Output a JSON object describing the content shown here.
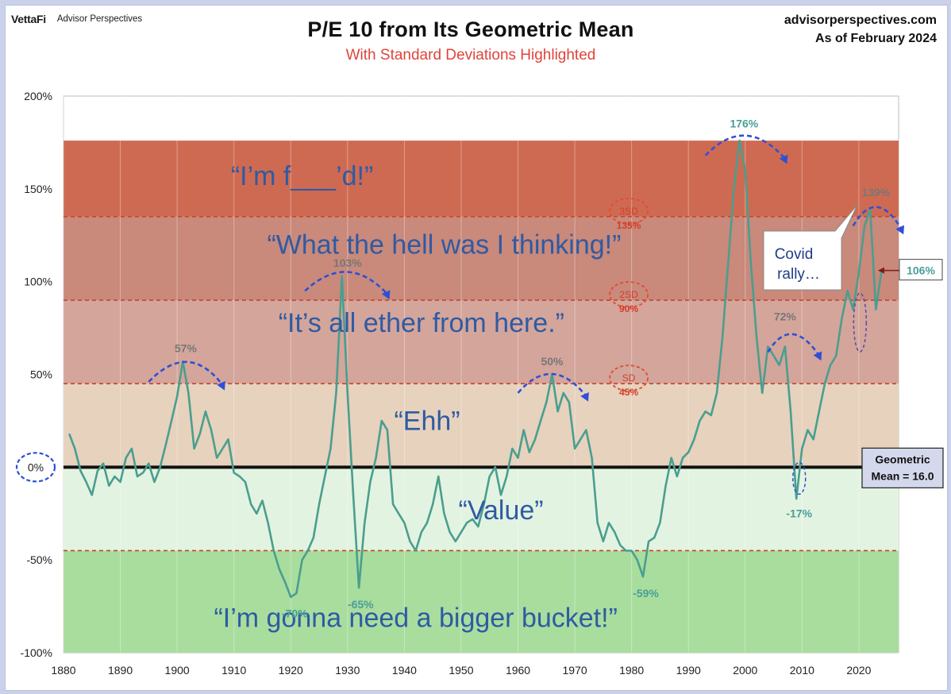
{
  "brand": {
    "logo": "VettaFi",
    "name": "Advisor Perspectives"
  },
  "site": {
    "url": "advisorperspectives.com",
    "asof": "As of February 2024"
  },
  "chart_data": {
    "type": "line",
    "title": "P/E 10 from Its Geometric Mean",
    "subtitle": "With Standard Deviations Highlighted",
    "xlim": [
      1880,
      2027
    ],
    "ylim": [
      -100,
      200
    ],
    "x_ticks": [
      "1880",
      "1890",
      "1900",
      "1910",
      "1920",
      "1930",
      "1940",
      "1950",
      "1960",
      "1970",
      "1980",
      "1990",
      "2000",
      "2010",
      "2020"
    ],
    "y_ticks": [
      "200%",
      "150%",
      "100%",
      "50%",
      "0%",
      "-50%",
      "-100%"
    ],
    "y_tick_values": [
      200,
      150,
      100,
      50,
      0,
      -50,
      -100
    ],
    "bands": [
      {
        "from": 135,
        "to": 176,
        "color": "#cf6a52"
      },
      {
        "from": 90,
        "to": 135,
        "color": "#c9897b"
      },
      {
        "from": 45,
        "to": 90,
        "color": "#d4a59a"
      },
      {
        "from": 0,
        "to": 45,
        "color": "#e6d2bd"
      },
      {
        "from": -45,
        "to": 0,
        "color": "#e3f3e1"
      },
      {
        "from": -100,
        "to": -45,
        "color": "#a8dd9e"
      }
    ],
    "sd_lines": [
      135,
      90,
      45,
      -45
    ],
    "sd_labels": [
      {
        "name": "3SD",
        "value": "135%"
      },
      {
        "name": "2SD",
        "value": "90%"
      },
      {
        "name": "SD",
        "value": "45%"
      }
    ],
    "zone_texts": [
      {
        "text": "“I’m f___’d!”",
        "x": 1922,
        "y": 152
      },
      {
        "text": "“What the hell was I thinking!”",
        "x": 1947,
        "y": 115
      },
      {
        "text": "“It’s all ether from here.”",
        "x": 1943,
        "y": 73
      },
      {
        "text": "“Ehh”",
        "x": 1944,
        "y": 20
      },
      {
        "text": "“Value”",
        "x": 1957,
        "y": -28
      },
      {
        "text": "“I’m gonna need a bigger bucket!”",
        "x": 1942,
        "y": -86
      }
    ],
    "peak_labels": [
      {
        "text": "57%",
        "x": 1901.5,
        "y": 62,
        "color": "#777777"
      },
      {
        "text": "103%",
        "x": 1930,
        "y": 108,
        "color": "#777777"
      },
      {
        "text": "50%",
        "x": 1966,
        "y": 55,
        "color": "#777777"
      },
      {
        "text": "176%",
        "x": 1999.8,
        "y": 183,
        "color": "#4a9e96"
      },
      {
        "text": "72%",
        "x": 2007,
        "y": 79,
        "color": "#777777"
      },
      {
        "text": "139%",
        "x": 2023,
        "y": 146,
        "color": "#777777"
      },
      {
        "text": "-17%",
        "x": 2009.5,
        "y": -27,
        "color": "#4a9e96"
      },
      {
        "text": "-70%",
        "x": 1920.7,
        "y": -81,
        "color": "#4a9e96"
      },
      {
        "text": "-65%",
        "x": 1932.3,
        "y": -76,
        "color": "#4a9e96"
      },
      {
        "text": "-59%",
        "x": 1982.5,
        "y": -70,
        "color": "#4a9e96"
      }
    ],
    "annotations": {
      "zero_label": "0%",
      "covid_line1": "Covid",
      "covid_line2": "rally…",
      "latest": "106%",
      "mean_line1": "Geometric",
      "mean_line2": "Mean = 16.0"
    },
    "series": [
      {
        "points": [
          [
            1881,
            18
          ],
          [
            1882,
            10
          ],
          [
            1883,
            -2
          ],
          [
            1884,
            -8
          ],
          [
            1885,
            -15
          ],
          [
            1886,
            -2
          ],
          [
            1887,
            2
          ],
          [
            1888,
            -10
          ],
          [
            1889,
            -5
          ],
          [
            1890,
            -8
          ],
          [
            1891,
            5
          ],
          [
            1892,
            10
          ],
          [
            1893,
            -5
          ],
          [
            1894,
            -3
          ],
          [
            1895,
            2
          ],
          [
            1896,
            -8
          ],
          [
            1897,
            0
          ],
          [
            1898,
            12
          ],
          [
            1899,
            25
          ],
          [
            1900,
            38
          ],
          [
            1901,
            57
          ],
          [
            1902,
            40
          ],
          [
            1903,
            10
          ],
          [
            1904,
            18
          ],
          [
            1905,
            30
          ],
          [
            1906,
            20
          ],
          [
            1907,
            5
          ],
          [
            1908,
            10
          ],
          [
            1909,
            15
          ],
          [
            1910,
            -3
          ],
          [
            1911,
            -5
          ],
          [
            1912,
            -8
          ],
          [
            1913,
            -20
          ],
          [
            1914,
            -25
          ],
          [
            1915,
            -18
          ],
          [
            1916,
            -30
          ],
          [
            1917,
            -45
          ],
          [
            1918,
            -55
          ],
          [
            1919,
            -62
          ],
          [
            1920,
            -70
          ],
          [
            1921,
            -68
          ],
          [
            1922,
            -50
          ],
          [
            1923,
            -45
          ],
          [
            1924,
            -38
          ],
          [
            1925,
            -20
          ],
          [
            1926,
            -5
          ],
          [
            1927,
            10
          ],
          [
            1928,
            40
          ],
          [
            1929,
            103
          ],
          [
            1930,
            40
          ],
          [
            1931,
            -15
          ],
          [
            1932,
            -65
          ],
          [
            1933,
            -30
          ],
          [
            1934,
            -8
          ],
          [
            1935,
            5
          ],
          [
            1936,
            25
          ],
          [
            1937,
            20
          ],
          [
            1938,
            -20
          ],
          [
            1939,
            -25
          ],
          [
            1940,
            -30
          ],
          [
            1941,
            -40
          ],
          [
            1942,
            -45
          ],
          [
            1943,
            -35
          ],
          [
            1944,
            -30
          ],
          [
            1945,
            -20
          ],
          [
            1946,
            -5
          ],
          [
            1947,
            -25
          ],
          [
            1948,
            -35
          ],
          [
            1949,
            -40
          ],
          [
            1950,
            -35
          ],
          [
            1951,
            -30
          ],
          [
            1952,
            -28
          ],
          [
            1953,
            -32
          ],
          [
            1954,
            -20
          ],
          [
            1955,
            -5
          ],
          [
            1956,
            0
          ],
          [
            1957,
            -15
          ],
          [
            1958,
            -5
          ],
          [
            1959,
            10
          ],
          [
            1960,
            5
          ],
          [
            1961,
            20
          ],
          [
            1962,
            8
          ],
          [
            1963,
            15
          ],
          [
            1964,
            25
          ],
          [
            1965,
            35
          ],
          [
            1966,
            50
          ],
          [
            1967,
            30
          ],
          [
            1968,
            40
          ],
          [
            1969,
            35
          ],
          [
            1970,
            10
          ],
          [
            1971,
            15
          ],
          [
            1972,
            20
          ],
          [
            1973,
            5
          ],
          [
            1974,
            -30
          ],
          [
            1975,
            -40
          ],
          [
            1976,
            -30
          ],
          [
            1977,
            -35
          ],
          [
            1978,
            -42
          ],
          [
            1979,
            -45
          ],
          [
            1980,
            -45
          ],
          [
            1981,
            -50
          ],
          [
            1982,
            -59
          ],
          [
            1983,
            -40
          ],
          [
            1984,
            -38
          ],
          [
            1985,
            -30
          ],
          [
            1986,
            -10
          ],
          [
            1987,
            5
          ],
          [
            1988,
            -5
          ],
          [
            1989,
            5
          ],
          [
            1990,
            8
          ],
          [
            1991,
            15
          ],
          [
            1992,
            25
          ],
          [
            1993,
            30
          ],
          [
            1994,
            28
          ],
          [
            1995,
            40
          ],
          [
            1996,
            70
          ],
          [
            1997,
            110
          ],
          [
            1998,
            150
          ],
          [
            1999,
            176
          ],
          [
            2000,
            160
          ],
          [
            2001,
            110
          ],
          [
            2002,
            70
          ],
          [
            2003,
            40
          ],
          [
            2004,
            65
          ],
          [
            2005,
            60
          ],
          [
            2006,
            55
          ],
          [
            2007,
            65
          ],
          [
            2008,
            30
          ],
          [
            2009,
            -17
          ],
          [
            2010,
            10
          ],
          [
            2011,
            20
          ],
          [
            2012,
            15
          ],
          [
            2013,
            30
          ],
          [
            2014,
            45
          ],
          [
            2015,
            55
          ],
          [
            2016,
            60
          ],
          [
            2017,
            80
          ],
          [
            2018,
            95
          ],
          [
            2019,
            85
          ],
          [
            2020,
            105
          ],
          [
            2021,
            130
          ],
          [
            2022,
            139
          ],
          [
            2023,
            85
          ],
          [
            2024,
            106
          ]
        ]
      }
    ]
  }
}
